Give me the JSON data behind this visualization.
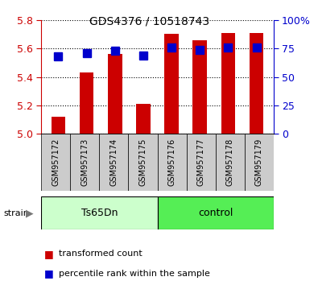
{
  "title": "GDS4376 / 10518743",
  "categories": [
    "GSM957172",
    "GSM957173",
    "GSM957174",
    "GSM957175",
    "GSM957176",
    "GSM957177",
    "GSM957178",
    "GSM957179"
  ],
  "transformed_counts": [
    5.12,
    5.43,
    5.56,
    5.21,
    5.7,
    5.66,
    5.71,
    5.71
  ],
  "percentile_ranks": [
    68,
    71,
    73,
    69,
    76,
    74,
    76,
    76
  ],
  "ylim_left": [
    5.0,
    5.8
  ],
  "ylim_right": [
    0,
    100
  ],
  "yticks_left": [
    5.0,
    5.2,
    5.4,
    5.6,
    5.8
  ],
  "yticks_right": [
    0,
    25,
    50,
    75,
    100
  ],
  "bar_color": "#cc0000",
  "marker_color": "#0000cc",
  "group_labels": [
    "Ts65Dn",
    "control"
  ],
  "group_colors_ts65": "#ccffcc",
  "group_colors_ctrl": "#55ee55",
  "strain_label": "strain",
  "legend_items": [
    "transformed count",
    "percentile rank within the sample"
  ],
  "left_axis_color": "#cc0000",
  "right_axis_color": "#0000cc",
  "bar_bottom": 5.0,
  "marker_size": 7,
  "bar_width": 0.5,
  "xtick_bg_color": "#cccccc",
  "fig_bg_color": "#ffffff"
}
